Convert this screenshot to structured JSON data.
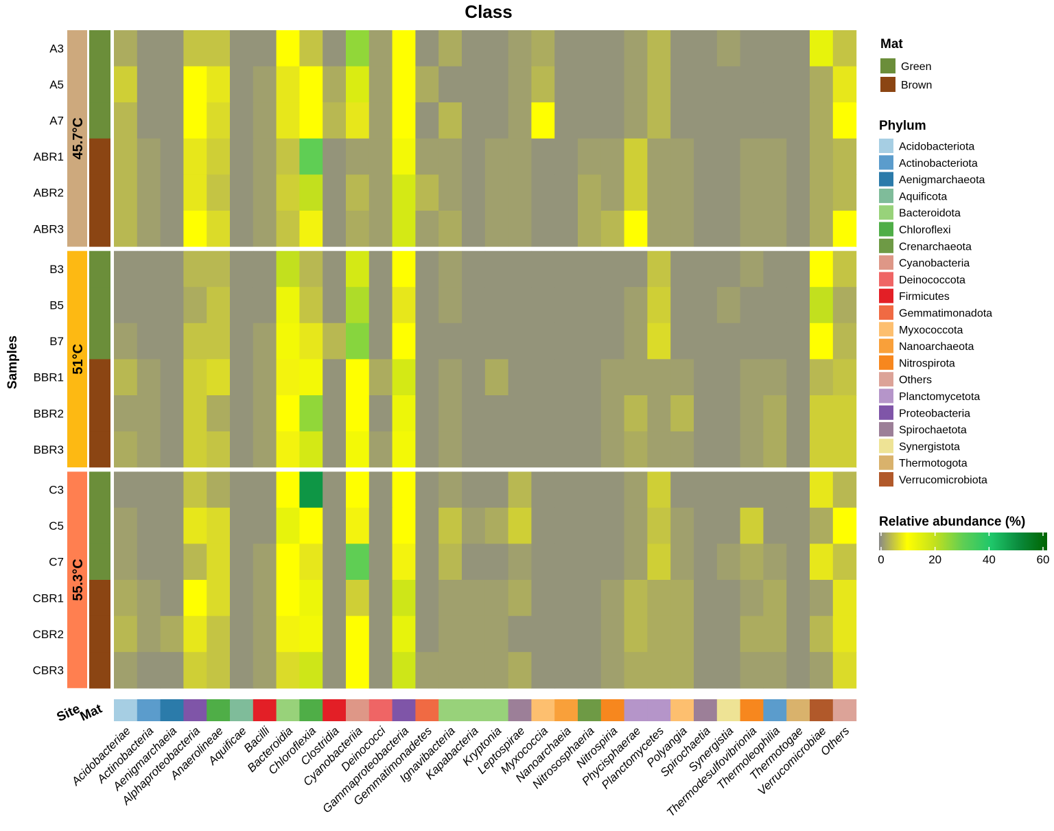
{
  "chart_data": {
    "type": "heatmap",
    "title": "Class",
    "ylabel": "Samples",
    "rows": [
      "A3",
      "A5",
      "A7",
      "ABR1",
      "ABR2",
      "ABR3",
      "B3",
      "B5",
      "B7",
      "BBR1",
      "BBR2",
      "BBR3",
      "C3",
      "C5",
      "C7",
      "CBR1",
      "CBR2",
      "CBR3"
    ],
    "columns": [
      "Acidobacteriae",
      "Actinobacteria",
      "Aenigmarchaeia",
      "Alphaproteobacteria",
      "Anaerolineae",
      "Aquificae",
      "Bacilli",
      "Bacteroidia",
      "Chloroflexia",
      "Clostridia",
      "Cyanobacteriia",
      "Deinococci",
      "Gammaproteobacteria",
      "Gemmatimonadetes",
      "Ignavibacteria",
      "Kapabacteria",
      "Kryptonia",
      "Leptospirae",
      "Myxococcia",
      "Nanoarchaeia",
      "Nitrososphaeria",
      "Nitrospiria",
      "Phycisphaerae",
      "Planctomycetes",
      "Polyangia",
      "Spirochaetia",
      "Synergistia",
      "Thermodesulfovibrionia",
      "Thermoleophilia",
      "Thermotogae",
      "Verrucomicrobiae",
      "Others"
    ],
    "values": [
      [
        3,
        1,
        1,
        5,
        5,
        1,
        1,
        10,
        5,
        1,
        25,
        2,
        10,
        1,
        3,
        1,
        1,
        2,
        3,
        1,
        1,
        1,
        2,
        4,
        1,
        1,
        2,
        1,
        1,
        1,
        14,
        5
      ],
      [
        6,
        1,
        1,
        10,
        8,
        1,
        2,
        8,
        10,
        3,
        16,
        2,
        10,
        3,
        1,
        1,
        1,
        2,
        4,
        1,
        1,
        1,
        2,
        4,
        1,
        1,
        1,
        1,
        1,
        1,
        3,
        8
      ],
      [
        4,
        1,
        1,
        10,
        7,
        1,
        2,
        8,
        10,
        4,
        8,
        2,
        10,
        1,
        4,
        1,
        1,
        2,
        10,
        1,
        1,
        1,
        2,
        4,
        1,
        1,
        1,
        1,
        1,
        1,
        3,
        10
      ],
      [
        4,
        2,
        1,
        8,
        6,
        1,
        2,
        5,
        30,
        1,
        2,
        2,
        12,
        2,
        2,
        1,
        2,
        2,
        1,
        1,
        2,
        2,
        6,
        2,
        2,
        1,
        1,
        2,
        2,
        1,
        3,
        4
      ],
      [
        4,
        2,
        1,
        8,
        5,
        1,
        2,
        6,
        20,
        1,
        4,
        2,
        17,
        4,
        2,
        1,
        2,
        2,
        1,
        1,
        3,
        2,
        6,
        2,
        2,
        1,
        1,
        2,
        2,
        1,
        3,
        4
      ],
      [
        4,
        2,
        1,
        10,
        7,
        1,
        2,
        5,
        9,
        1,
        3,
        2,
        17,
        2,
        3,
        1,
        2,
        2,
        1,
        1,
        3,
        4,
        10,
        2,
        2,
        1,
        1,
        2,
        2,
        1,
        3,
        10
      ],
      [
        1,
        1,
        1,
        4,
        4,
        1,
        1,
        20,
        4,
        1,
        17,
        1,
        10,
        1,
        2,
        1,
        1,
        1,
        1,
        1,
        1,
        1,
        1,
        5,
        1,
        1,
        1,
        2,
        1,
        1,
        10,
        5
      ],
      [
        1,
        1,
        1,
        3,
        5,
        1,
        1,
        13,
        5,
        1,
        22,
        1,
        8,
        1,
        2,
        1,
        1,
        1,
        1,
        1,
        1,
        1,
        2,
        6,
        1,
        1,
        2,
        1,
        1,
        1,
        20,
        3
      ],
      [
        2,
        1,
        1,
        5,
        5,
        1,
        2,
        12,
        8,
        4,
        26,
        1,
        10,
        1,
        1,
        1,
        1,
        1,
        1,
        1,
        1,
        1,
        2,
        7,
        1,
        1,
        1,
        1,
        1,
        1,
        10,
        4
      ],
      [
        4,
        2,
        1,
        6,
        7,
        1,
        2,
        9,
        12,
        1,
        10,
        3,
        17,
        1,
        2,
        1,
        3,
        1,
        1,
        1,
        1,
        2,
        2,
        2,
        2,
        1,
        1,
        2,
        2,
        1,
        4,
        5
      ],
      [
        2,
        2,
        1,
        6,
        3,
        1,
        2,
        10,
        25,
        1,
        10,
        1,
        13,
        1,
        2,
        1,
        1,
        1,
        1,
        1,
        1,
        2,
        4,
        2,
        4,
        1,
        1,
        2,
        3,
        1,
        6,
        6
      ],
      [
        3,
        2,
        1,
        6,
        5,
        1,
        2,
        9,
        17,
        1,
        12,
        2,
        12,
        1,
        2,
        1,
        1,
        1,
        1,
        1,
        1,
        2,
        3,
        2,
        2,
        1,
        1,
        2,
        3,
        1,
        6,
        6
      ],
      [
        1,
        1,
        1,
        5,
        3,
        1,
        1,
        10,
        48,
        1,
        10,
        1,
        10,
        1,
        2,
        1,
        1,
        4,
        1,
        1,
        1,
        1,
        2,
        6,
        1,
        1,
        1,
        1,
        1,
        1,
        8,
        4
      ],
      [
        2,
        1,
        1,
        8,
        7,
        1,
        1,
        14,
        10,
        1,
        9,
        1,
        10,
        1,
        5,
        2,
        3,
        6,
        1,
        1,
        1,
        1,
        2,
        5,
        2,
        1,
        1,
        6,
        1,
        1,
        3,
        10
      ],
      [
        2,
        1,
        1,
        4,
        7,
        1,
        2,
        10,
        8,
        1,
        30,
        1,
        9,
        1,
        4,
        1,
        1,
        2,
        1,
        1,
        1,
        1,
        2,
        6,
        2,
        1,
        2,
        3,
        2,
        1,
        8,
        5
      ],
      [
        3,
        2,
        1,
        10,
        7,
        1,
        2,
        10,
        13,
        1,
        6,
        1,
        18,
        1,
        2,
        2,
        2,
        3,
        1,
        1,
        1,
        2,
        4,
        3,
        3,
        1,
        1,
        2,
        3,
        1,
        2,
        8
      ],
      [
        4,
        2,
        3,
        8,
        5,
        1,
        2,
        9,
        12,
        1,
        10,
        1,
        14,
        1,
        2,
        2,
        2,
        1,
        1,
        1,
        1,
        2,
        4,
        3,
        3,
        1,
        1,
        3,
        3,
        1,
        4,
        8
      ],
      [
        2,
        1,
        1,
        6,
        5,
        1,
        2,
        7,
        18,
        1,
        10,
        1,
        18,
        2,
        2,
        2,
        2,
        3,
        1,
        1,
        1,
        2,
        3,
        3,
        3,
        1,
        1,
        2,
        2,
        1,
        2,
        7
      ]
    ],
    "site_annotation": [
      {
        "label": "45.7°C",
        "color": "#CDA97D",
        "rows": [
          0,
          5
        ]
      },
      {
        "label": "51°C",
        "color": "#FDB913",
        "rows": [
          6,
          11
        ]
      },
      {
        "label": "55.3°C",
        "color": "#FF7F50",
        "rows": [
          12,
          17
        ]
      }
    ],
    "mat_annotation": [
      "Green",
      "Green",
      "Green",
      "Brown",
      "Brown",
      "Brown",
      "Green",
      "Green",
      "Green",
      "Brown",
      "Brown",
      "Brown",
      "Green",
      "Green",
      "Green",
      "Brown",
      "Brown",
      "Brown"
    ],
    "annotation_labels": {
      "site": "Site",
      "mat": "Mat"
    },
    "column_phylum": [
      "Acidobacteriota",
      "Actinobacteriota",
      "Aenigmarchaeota",
      "Proteobacteria",
      "Chloroflexi",
      "Aquificota",
      "Firmicutes",
      "Bacteroidota",
      "Chloroflexi",
      "Firmicutes",
      "Cyanobacteria",
      "Deinococcota",
      "Proteobacteria",
      "Gemmatimonadota",
      "Bacteroidota",
      "Bacteroidota",
      "Bacteroidota",
      "Spirochaetota",
      "Myxococcota",
      "Nanoarchaeota",
      "Crenarchaeota",
      "Nitrospirota",
      "Planctomycetota",
      "Planctomycetota",
      "Myxococcota",
      "Spirochaetota",
      "Synergistota",
      "Nitrospirota",
      "Actinobacteriota",
      "Thermotogota",
      "Verrucomicrobiota",
      "Others"
    ],
    "legend_mat": {
      "title": "Mat",
      "items": [
        {
          "label": "Green",
          "color": "#6B8E3A"
        },
        {
          "label": "Brown",
          "color": "#8B4513"
        }
      ]
    },
    "legend_phylum": {
      "title": "Phylum",
      "items": [
        {
          "label": "Acidobacteriota",
          "color": "#A6CEE3"
        },
        {
          "label": "Actinobacteriota",
          "color": "#5B9CCC"
        },
        {
          "label": "Aenigmarchaeota",
          "color": "#2B7BAA"
        },
        {
          "label": "Aquificota",
          "color": "#7FBC9A"
        },
        {
          "label": "Bacteroidota",
          "color": "#98D27A"
        },
        {
          "label": "Chloroflexi",
          "color": "#4FAE47"
        },
        {
          "label": "Crenarchaeota",
          "color": "#6E9A45"
        },
        {
          "label": "Cyanobacteria",
          "color": "#DE9787"
        },
        {
          "label": "Deinococcota",
          "color": "#EF6565"
        },
        {
          "label": "Firmicutes",
          "color": "#E31F26"
        },
        {
          "label": "Gemmatimonadota",
          "color": "#F06A43"
        },
        {
          "label": "Myxococcota",
          "color": "#FDBF6F"
        },
        {
          "label": "Nanoarchaeota",
          "color": "#F9A03A"
        },
        {
          "label": "Nitrospirota",
          "color": "#F7871E"
        },
        {
          "label": "Others",
          "color": "#DCA398"
        },
        {
          "label": "Planctomycetota",
          "color": "#B595C9"
        },
        {
          "label": "Proteobacteria",
          "color": "#7F55A8"
        },
        {
          "label": "Spirochaetota",
          "color": "#9C7F98"
        },
        {
          "label": "Synergistota",
          "color": "#EEE395"
        },
        {
          "label": "Thermotogota",
          "color": "#D9B26C"
        },
        {
          "label": "Verrucomicrobiota",
          "color": "#B1592A"
        }
      ]
    },
    "legend_abundance": {
      "title": "Relative abundance (%)",
      "range": [
        0,
        60
      ],
      "ticks": [
        0,
        20,
        40,
        60
      ],
      "stops": [
        {
          "value": 0,
          "color": "#888888"
        },
        {
          "value": 10,
          "color": "#FFFF00"
        },
        {
          "value": 20,
          "color": "#C2E01E"
        },
        {
          "value": 30,
          "color": "#5FCE54"
        },
        {
          "value": 40,
          "color": "#1FC76A"
        },
        {
          "value": 50,
          "color": "#0A8A3C"
        },
        {
          "value": 60,
          "color": "#006400"
        }
      ]
    }
  }
}
